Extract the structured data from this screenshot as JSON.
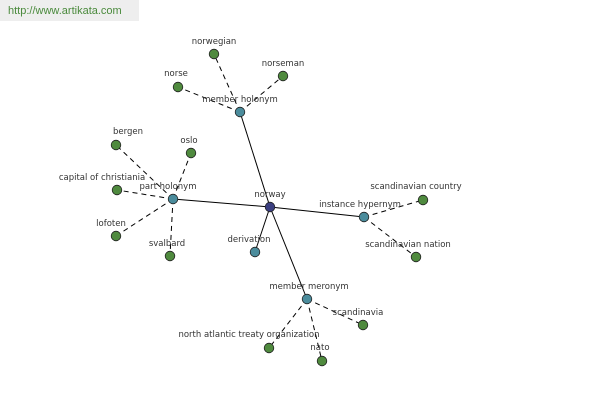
{
  "header": {
    "url": "http://www.artikata.com"
  },
  "nodes": [
    {
      "label": "norway"
    },
    {
      "label": "member holonym"
    },
    {
      "label": "norwegian"
    },
    {
      "label": "norse"
    },
    {
      "label": "norseman"
    },
    {
      "label": "part holonym"
    },
    {
      "label": "bergen"
    },
    {
      "label": "oslo"
    },
    {
      "label": "capital of christiania"
    },
    {
      "label": "lofoten"
    },
    {
      "label": "svalbard"
    },
    {
      "label": "derivation"
    },
    {
      "label": "instance hypernym"
    },
    {
      "label": "scandinavian country"
    },
    {
      "label": "scandinavian nation"
    },
    {
      "label": "member meronym"
    },
    {
      "label": "scandinavia"
    },
    {
      "label": "north atlantic treaty organization"
    },
    {
      "label": "nato"
    }
  ]
}
